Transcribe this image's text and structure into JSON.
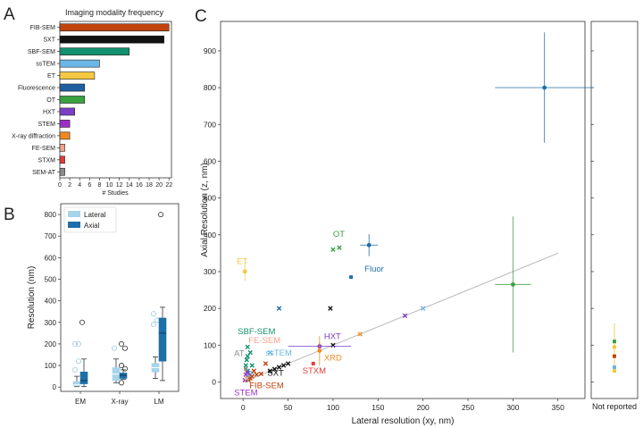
{
  "panels": {
    "a": "A",
    "b": "B",
    "c": "C"
  },
  "colors": {
    "fib_sem": "#c1440e",
    "sxt": "#111111",
    "sbf_sem": "#14916e",
    "sstem": "#6db6e8",
    "et": "#f4c842",
    "fluorescence": "#1f5f9f",
    "ot": "#3aa142",
    "hxt": "#7b3fc6",
    "stem": "#9b30c8",
    "xrd": "#f08a20",
    "fe_sem": "#f2a38c",
    "stxm": "#e33b3b",
    "sem_at": "#8c8c8c",
    "lateral": "#a6d4ea",
    "axial": "#1f6fa8"
  },
  "chart_data": [
    {
      "type": "bar",
      "orientation": "horizontal",
      "title": "Imaging modality frequency",
      "xlabel": "# Studies",
      "ylabel": "",
      "xlim": [
        0,
        22.5
      ],
      "xticks": [
        0,
        2,
        4,
        6,
        8,
        10,
        12,
        14,
        16,
        18,
        20,
        22
      ],
      "categories": [
        "FIB-SEM",
        "SXT",
        "SBF-SEM",
        "ssTEM",
        "ET",
        "Fluorescence",
        "OT",
        "HXT",
        "STEM",
        "X-ray diffraction",
        "FE-SEM",
        "STXM",
        "SEM-AT"
      ],
      "values": [
        22,
        21,
        14,
        8,
        7,
        5,
        5,
        3,
        2,
        2,
        1,
        1,
        1
      ],
      "bar_colors": [
        "#c1440e",
        "#111111",
        "#14916e",
        "#6db6e8",
        "#f4c842",
        "#1f5f9f",
        "#3aa142",
        "#7b3fc6",
        "#9b30c8",
        "#f08a20",
        "#f2a38c",
        "#e33b3b",
        "#8c8c8c"
      ]
    },
    {
      "type": "box",
      "title": "",
      "xlabel": "",
      "ylabel": "Resolution (nm)",
      "ylim": [
        -20,
        850
      ],
      "yticks": [
        0,
        100,
        200,
        300,
        400,
        500,
        600,
        700,
        800
      ],
      "categories": [
        "EM",
        "X-ray",
        "LM"
      ],
      "legend": {
        "position": "top-left",
        "entries": [
          "Lateral",
          "Axial"
        ]
      },
      "series": [
        {
          "name": "Lateral",
          "boxes": [
            {
              "q1": 5,
              "median": 10,
              "q3": 25,
              "lo": 2,
              "hi": 50,
              "fliers": [
                80,
                120,
                200,
                200
              ]
            },
            {
              "q1": 30,
              "median": 60,
              "q3": 90,
              "lo": 20,
              "hi": 130,
              "fliers": [
                180
              ]
            },
            {
              "q1": 70,
              "median": 90,
              "q3": 110,
              "lo": 40,
              "hi": 140,
              "fliers": [
                290,
                310,
                340
              ]
            }
          ]
        },
        {
          "name": "Axial",
          "boxes": [
            {
              "q1": 15,
              "median": 30,
              "q3": 70,
              "lo": 2,
              "hi": 130,
              "fliers": [
                300
              ]
            },
            {
              "q1": 40,
              "median": 55,
              "q3": 65,
              "lo": 35,
              "hi": 80,
              "fliers": [
                20,
                85,
                100,
                180,
                200
              ]
            },
            {
              "q1": 120,
              "median": 250,
              "q3": 320,
              "lo": 30,
              "hi": 370,
              "fliers": [
                800
              ]
            }
          ]
        }
      ]
    },
    {
      "type": "scatter",
      "title": "",
      "xlabel": "Lateral resolution (xy, nm)",
      "ylabel": "Axial Resolution (z, nm)",
      "xlim": [
        -25,
        380
      ],
      "ylim": [
        -45,
        980
      ],
      "xticks": [
        0,
        50,
        100,
        150,
        200,
        250,
        300,
        350
      ],
      "yticks": [
        0,
        100,
        200,
        300,
        400,
        500,
        600,
        700,
        800,
        900
      ],
      "side_panel_label": "Not reported",
      "trend_line": {
        "x": [
          0,
          350
        ],
        "y": [
          0,
          350
        ]
      },
      "labels": [
        {
          "text": "OT",
          "x": 100,
          "y": 395,
          "color": "#3aa142"
        },
        {
          "text": "Fluor",
          "x": 135,
          "y": 300,
          "color": "#1f6fa8"
        },
        {
          "text": "ET",
          "x": -7,
          "y": 320,
          "color": "#f4c842"
        },
        {
          "text": "SBF-SEM",
          "x": -6,
          "y": 130,
          "color": "#14916e"
        },
        {
          "text": "FE-SEM",
          "x": 6,
          "y": 105,
          "color": "#f2a38c"
        },
        {
          "text": "AT",
          "x": -10,
          "y": 70,
          "color": "#8c8c8c"
        },
        {
          "text": "ssTEM",
          "x": 25,
          "y": 72,
          "color": "#6db6e8"
        },
        {
          "text": "HXT",
          "x": 90,
          "y": 117,
          "color": "#7b3fc6"
        },
        {
          "text": "XRD",
          "x": 90,
          "y": 58,
          "color": "#f08a20"
        },
        {
          "text": "STXM",
          "x": 66,
          "y": 23,
          "color": "#e33b3b"
        },
        {
          "text": "SXT",
          "x": 27,
          "y": 17,
          "color": "#111111"
        },
        {
          "text": "FIB-SEM",
          "x": 7,
          "y": -17,
          "color": "#c1440e"
        },
        {
          "text": "STEM",
          "x": -10,
          "y": -37,
          "color": "#9b30c8"
        }
      ],
      "points": [
        {
          "x": 335,
          "y": 800,
          "xerr": 55,
          "yerr": 150,
          "color": "#1f6fa8",
          "marker": "dot"
        },
        {
          "x": 140,
          "y": 372,
          "xerr": 10,
          "yerr": 30,
          "color": "#1f6fa8",
          "marker": "dot"
        },
        {
          "x": 120,
          "y": 285,
          "color": "#1f6fa8",
          "marker": "square"
        },
        {
          "x": 40,
          "y": 200,
          "color": "#1f6fa8",
          "marker": "x"
        },
        {
          "x": 300,
          "y": 265,
          "xerr": 20,
          "yerr": 185,
          "color": "#3aa142",
          "marker": "dot"
        },
        {
          "x": 100,
          "y": 360,
          "color": "#3aa142",
          "marker": "x"
        },
        {
          "x": 107,
          "y": 365,
          "color": "#3aa142",
          "marker": "x"
        },
        {
          "x": 2,
          "y": 300,
          "yerr": 25,
          "color": "#f4c842",
          "marker": "dot"
        },
        {
          "x": 97,
          "y": 200,
          "color": "#111111",
          "marker": "x"
        },
        {
          "x": 100,
          "y": 100,
          "color": "#111111",
          "marker": "x"
        },
        {
          "x": 40,
          "y": 40,
          "color": "#111111",
          "marker": "x"
        },
        {
          "x": 35,
          "y": 35,
          "color": "#111111",
          "marker": "x"
        },
        {
          "x": 45,
          "y": 45,
          "color": "#111111",
          "marker": "x"
        },
        {
          "x": 50,
          "y": 50,
          "color": "#111111",
          "marker": "x"
        },
        {
          "x": 30,
          "y": 30,
          "color": "#111111",
          "marker": "x"
        },
        {
          "x": 200,
          "y": 200,
          "color": "#6db6e8",
          "marker": "x"
        },
        {
          "x": 180,
          "y": 180,
          "color": "#7b3fc6",
          "marker": "x"
        },
        {
          "x": 85,
          "y": 97,
          "xerr": 35,
          "yerr": 10,
          "color": "#7b3fc6",
          "marker": "dot"
        },
        {
          "x": 85,
          "y": 85,
          "yerr": 40,
          "color": "#f08a20",
          "marker": "dot"
        },
        {
          "x": 130,
          "y": 130,
          "color": "#f08a20",
          "marker": "x"
        },
        {
          "x": 78,
          "y": 50,
          "color": "#e33b3b",
          "marker": "square"
        },
        {
          "x": 5,
          "y": 95,
          "color": "#14916e",
          "marker": "x"
        },
        {
          "x": 8,
          "y": 80,
          "color": "#14916e",
          "marker": "x"
        },
        {
          "x": 5,
          "y": 70,
          "color": "#14916e",
          "marker": "x"
        },
        {
          "x": 4,
          "y": 60,
          "color": "#14916e",
          "marker": "x"
        },
        {
          "x": 3,
          "y": 45,
          "color": "#14916e",
          "marker": "x"
        },
        {
          "x": 10,
          "y": 45,
          "color": "#14916e",
          "marker": "x"
        },
        {
          "x": 5,
          "y": 30,
          "color": "#14916e",
          "marker": "x"
        },
        {
          "x": 8,
          "y": 20,
          "color": "#14916e",
          "marker": "x"
        },
        {
          "x": 6,
          "y": 10,
          "color": "#14916e",
          "marker": "x"
        },
        {
          "x": 30,
          "y": 80,
          "color": "#6db6e8",
          "marker": "x"
        },
        {
          "x": 10,
          "y": 25,
          "color": "#6db6e8",
          "marker": "x"
        },
        {
          "x": 7,
          "y": 15,
          "color": "#6db6e8",
          "marker": "x"
        },
        {
          "x": 3,
          "y": 20,
          "color": "#9b30c8",
          "marker": "x"
        },
        {
          "x": 5,
          "y": 25,
          "color": "#9b30c8",
          "marker": "x"
        },
        {
          "x": 2,
          "y": 5,
          "color": "#9b30c8",
          "marker": "x"
        },
        {
          "x": 10,
          "y": 15,
          "color": "#c1440e",
          "marker": "x"
        },
        {
          "x": 15,
          "y": 20,
          "color": "#c1440e",
          "marker": "x"
        },
        {
          "x": 20,
          "y": 22,
          "color": "#c1440e",
          "marker": "x"
        },
        {
          "x": 25,
          "y": 50,
          "color": "#c1440e",
          "marker": "x"
        },
        {
          "x": 12,
          "y": 30,
          "color": "#c1440e",
          "marker": "x"
        },
        {
          "x": 8,
          "y": 10,
          "color": "#c1440e",
          "marker": "x"
        },
        {
          "x": 6,
          "y": 5,
          "color": "#c1440e",
          "marker": "x"
        },
        {
          "x": 4,
          "y": 10,
          "color": "#f2a38c",
          "marker": "x"
        },
        {
          "x": 3,
          "y": 35,
          "color": "#8c8c8c",
          "marker": "square"
        }
      ],
      "not_reported": [
        {
          "y": 110,
          "color": "#3aa142"
        },
        {
          "y": 95,
          "color": "#f4c842"
        },
        {
          "y": 70,
          "color": "#c1440e"
        },
        {
          "y": 40,
          "color": "#6db6e8"
        },
        {
          "y": 30,
          "color": "#f4c842"
        }
      ],
      "not_reported_err": {
        "y": 100,
        "yerr": 60,
        "color": "#f4c842"
      }
    }
  ]
}
